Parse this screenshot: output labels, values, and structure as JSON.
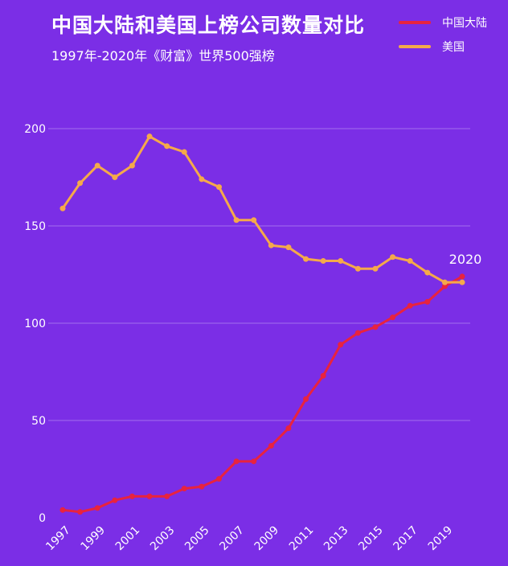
{
  "chart_data": {
    "type": "line",
    "title": "中国大陆和美国上榜公司数量对比",
    "subtitle": "1997年-2020年《财富》世界500强榜",
    "x": [
      1997,
      1998,
      1999,
      2000,
      2001,
      2002,
      2003,
      2004,
      2005,
      2006,
      2007,
      2008,
      2009,
      2010,
      2011,
      2012,
      2013,
      2014,
      2015,
      2016,
      2017,
      2018,
      2019,
      2020
    ],
    "x_tick_labels": [
      "1997",
      "1999",
      "2001",
      "2003",
      "2005",
      "2007",
      "2009",
      "2011",
      "2013",
      "2015",
      "2017",
      "2019"
    ],
    "y_ticks": [
      0,
      50,
      100,
      150,
      200
    ],
    "ylim": [
      0,
      200
    ],
    "series": [
      {
        "name": "中国大陆",
        "color": "#e8233f",
        "values": [
          4,
          3,
          5,
          9,
          11,
          11,
          11,
          15,
          16,
          20,
          29,
          29,
          37,
          46,
          61,
          73,
          89,
          95,
          98,
          103,
          109,
          111,
          119,
          124
        ]
      },
      {
        "name": "美国",
        "color": "#f5a94a",
        "values": [
          159,
          172,
          181,
          175,
          181,
          196,
          191,
          188,
          174,
          170,
          153,
          153,
          140,
          139,
          133,
          132,
          132,
          128,
          128,
          134,
          132,
          126,
          121,
          121
        ]
      }
    ],
    "annotation": "2020",
    "legend_position": "top-right"
  }
}
